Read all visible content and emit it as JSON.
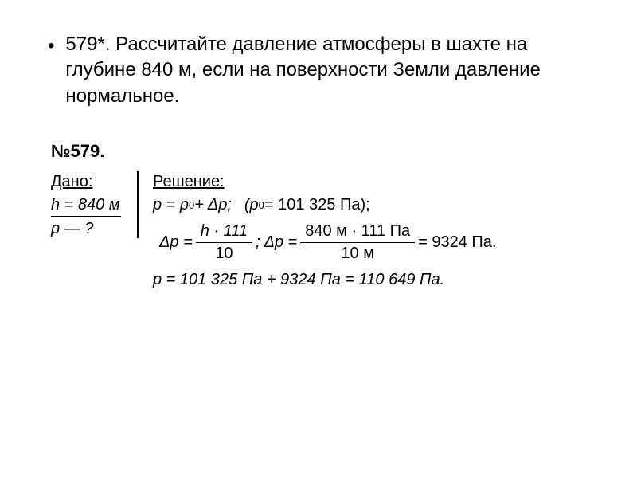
{
  "problem": {
    "bullet": "•",
    "text": "579*. Рассчитайте давление атмосферы в шахте на глубине 840 м, если на поверхности Земли давление нормальное."
  },
  "solution": {
    "number": "№579.",
    "given_label": "Дано:",
    "given_h": "h = 840 м",
    "given_question": "p — ?",
    "solution_label": "Решение:",
    "eq1_left": "p = p",
    "eq1_sub0": "0",
    "eq1_plus": " + Δp;",
    "eq1_paren_open": "   (p",
    "eq1_paren_val": " = 101 325 Па);",
    "eq2_dpeq": "Δp = ",
    "eq2_num1": "h · 111",
    "eq2_den1": "10",
    "eq2_semi": ";  Δp = ",
    "eq2_num2": "840 м · 111 Па",
    "eq2_den2": "10 м",
    "eq2_result": " = 9324 Па.",
    "eq3": "p = 101 325 Па + 9324 Па = 110 649 Па."
  },
  "style": {
    "background": "#ffffff",
    "text_color": "#000000",
    "problem_fontsize": 24,
    "solution_fontsize": 20
  }
}
